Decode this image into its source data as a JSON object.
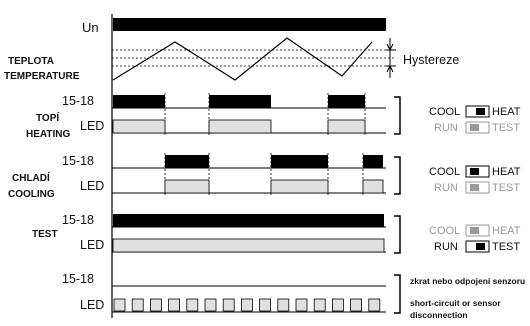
{
  "rows": {
    "un": "Un",
    "temperature": {
      "cz": "TEPLOTA",
      "en": "TEMPERATURE"
    },
    "heating": {
      "cz": "TOPÍ",
      "en": "HEATING",
      "relay": "15-18",
      "led": "LED"
    },
    "cooling": {
      "cz": "CHLADÍ",
      "en": "COOLING",
      "relay": "15-18",
      "led": "LED"
    },
    "test": {
      "label": "TEST",
      "relay": "15-18",
      "led": "LED"
    },
    "fault": {
      "relay": "15-18",
      "led": "LED"
    }
  },
  "hysteresis_label": "Hystereze",
  "legend": {
    "heating": {
      "cool": "COOL",
      "heat": "HEAT",
      "run": "RUN",
      "test": "TEST",
      "active_top": "cool",
      "active_bottom": "none"
    },
    "cooling": {
      "cool": "COOL",
      "heat": "HEAT",
      "run": "RUN",
      "test": "TEST",
      "active_top": "cool",
      "active_bottom": "none"
    },
    "test": {
      "cool": "COOL",
      "heat": "HEAT",
      "run": "RUN",
      "test": "TEST",
      "active_top": "none",
      "active_bottom": "test"
    }
  },
  "fault_note": {
    "cz": "zkrat nebo odpojení senzoru",
    "en_line1": "short-circuit or sensor",
    "en_line2": "disconnection"
  },
  "colors": {
    "on": "#000000",
    "led": "#e0e0e0",
    "line": "#000000",
    "inactive": "#9a9a9a"
  }
}
